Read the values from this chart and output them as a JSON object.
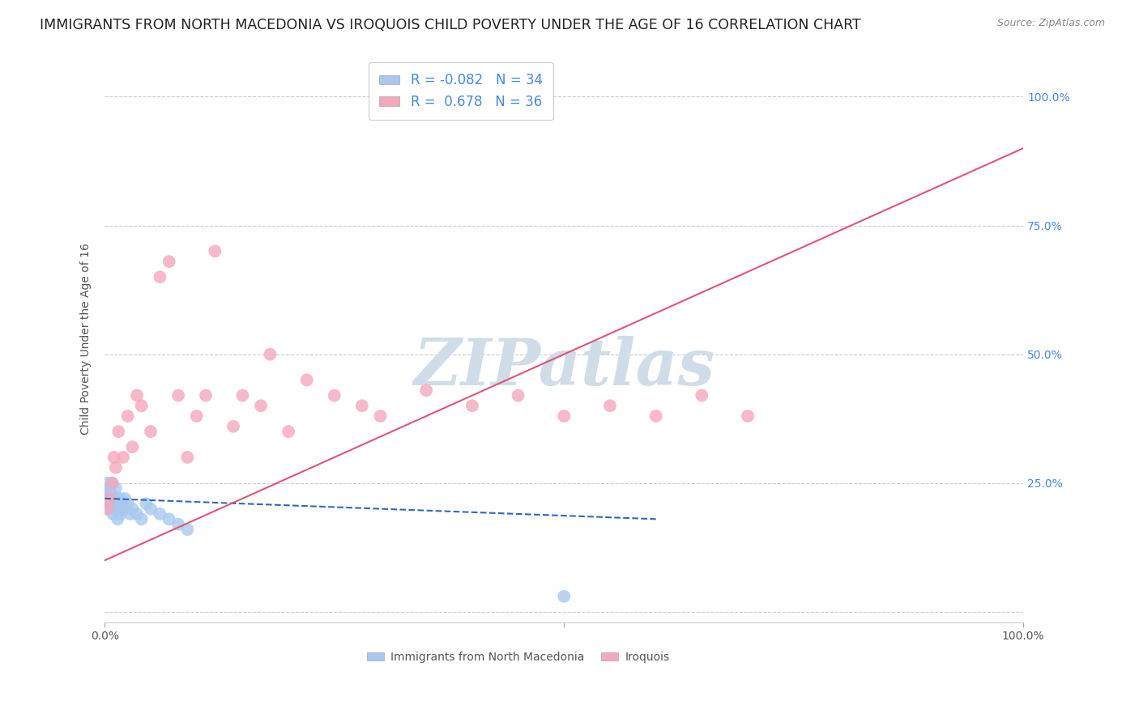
{
  "title": "IMMIGRANTS FROM NORTH MACEDONIA VS IROQUOIS CHILD POVERTY UNDER THE AGE OF 16 CORRELATION CHART",
  "source": "Source: ZipAtlas.com",
  "ylabel": "Child Poverty Under the Age of 16",
  "xlim": [
    0,
    100
  ],
  "ylim": [
    -2,
    108
  ],
  "ytick_positions": [
    0,
    25,
    50,
    75,
    100
  ],
  "ytick_labels": [
    "",
    "25.0%",
    "50.0%",
    "75.0%",
    "100.0%"
  ],
  "legend_r1": "-0.082",
  "legend_n1": "34",
  "legend_r2": "0.678",
  "legend_n2": "36",
  "blue_color": "#A8C8EE",
  "pink_color": "#F4A8BC",
  "blue_line_color": "#3366BB",
  "pink_line_color": "#E05575",
  "watermark_color": "#D0DDE8",
  "background_color": "#FFFFFF",
  "grid_color": "#CCCCCC",
  "title_fontsize": 12.5,
  "axis_label_fontsize": 10,
  "tick_fontsize": 10,
  "legend_fontsize": 12,
  "blue_x": [
    0.3,
    0.4,
    0.5,
    0.6,
    0.7,
    0.8,
    0.9,
    1.0,
    1.1,
    1.2,
    1.3,
    1.4,
    1.5,
    1.6,
    1.7,
    1.8,
    2.0,
    2.2,
    2.5,
    2.8,
    3.0,
    3.5,
    4.0,
    4.5,
    5.0,
    6.0,
    7.0,
    8.0,
    9.0,
    0.2,
    0.3,
    0.5,
    0.7,
    50.0
  ],
  "blue_y": [
    20,
    22,
    24,
    21,
    23,
    25,
    19,
    20,
    22,
    24,
    21,
    18,
    20,
    22,
    19,
    21,
    20,
    22,
    21,
    19,
    20,
    19,
    18,
    21,
    20,
    19,
    18,
    17,
    16,
    23,
    25,
    22,
    21,
    3
  ],
  "pink_x": [
    0.3,
    0.5,
    0.8,
    1.0,
    1.2,
    1.5,
    2.0,
    2.5,
    3.0,
    3.5,
    4.0,
    5.0,
    6.0,
    7.0,
    8.0,
    9.0,
    10.0,
    11.0,
    12.0,
    14.0,
    15.0,
    17.0,
    18.0,
    20.0,
    22.0,
    25.0,
    28.0,
    30.0,
    35.0,
    40.0,
    45.0,
    50.0,
    55.0,
    60.0,
    65.0,
    70.0
  ],
  "pink_y": [
    20,
    22,
    25,
    30,
    28,
    35,
    30,
    38,
    32,
    42,
    40,
    35,
    65,
    68,
    42,
    30,
    38,
    42,
    70,
    36,
    42,
    40,
    50,
    35,
    45,
    42,
    40,
    38,
    43,
    40,
    42,
    38,
    40,
    38,
    42,
    38
  ],
  "blue_trend_x": [
    0,
    60
  ],
  "blue_trend_y": [
    22,
    18
  ],
  "pink_trend_x": [
    0,
    100
  ],
  "pink_trend_y": [
    10,
    90
  ]
}
